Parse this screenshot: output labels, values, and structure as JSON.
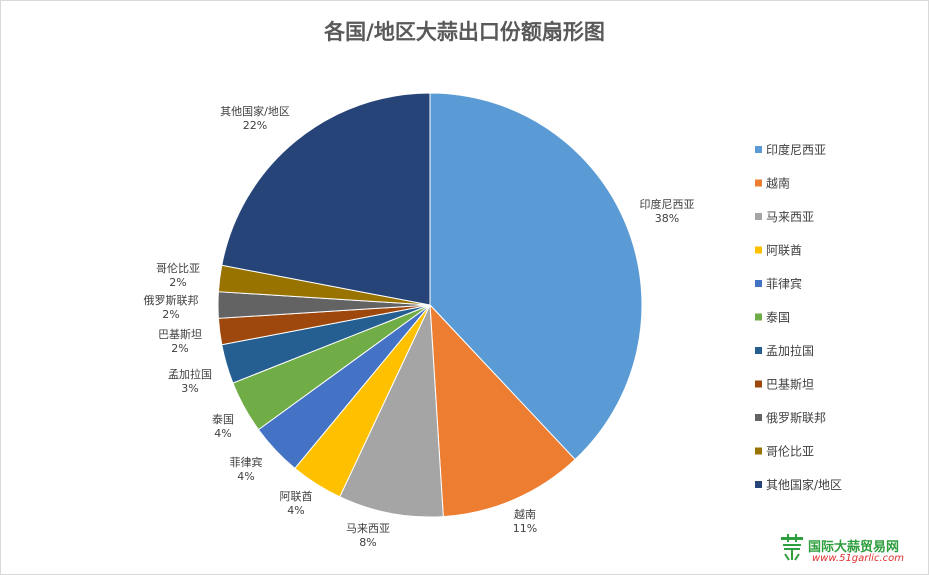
{
  "chart_data": {
    "type": "pie",
    "title": "各国/地区大蒜出口份额扇形图",
    "legend_position": "right",
    "slices": [
      {
        "label": "印度尼西亚",
        "value": 38,
        "pct_label": "38%",
        "color": "#5b9bd5"
      },
      {
        "label": "越南",
        "value": 11,
        "pct_label": "11%",
        "color": "#ed7d31"
      },
      {
        "label": "马来西亚",
        "value": 8,
        "pct_label": "8%",
        "color": "#a5a5a5"
      },
      {
        "label": "阿联酋",
        "value": 4,
        "pct_label": "4%",
        "color": "#ffc000"
      },
      {
        "label": "菲律宾",
        "value": 4,
        "pct_label": "4%",
        "color": "#4472c4"
      },
      {
        "label": "泰国",
        "value": 4,
        "pct_label": "4%",
        "color": "#70ad47"
      },
      {
        "label": "孟加拉国",
        "value": 3,
        "pct_label": "3%",
        "color": "#255e91"
      },
      {
        "label": "巴基斯坦",
        "value": 2,
        "pct_label": "2%",
        "color": "#9e480e"
      },
      {
        "label": "俄罗斯联邦",
        "value": 2,
        "pct_label": "2%",
        "color": "#636363"
      },
      {
        "label": "哥伦比亚",
        "value": 2,
        "pct_label": "2%",
        "color": "#997300"
      },
      {
        "label": "其他国家/地区",
        "value": 22,
        "pct_label": "22%",
        "color": "#264478"
      }
    ]
  },
  "watermark": {
    "name": "国际大蒜贸易网",
    "url": "www.51garlic.com",
    "logo_glyph": "蒜"
  }
}
